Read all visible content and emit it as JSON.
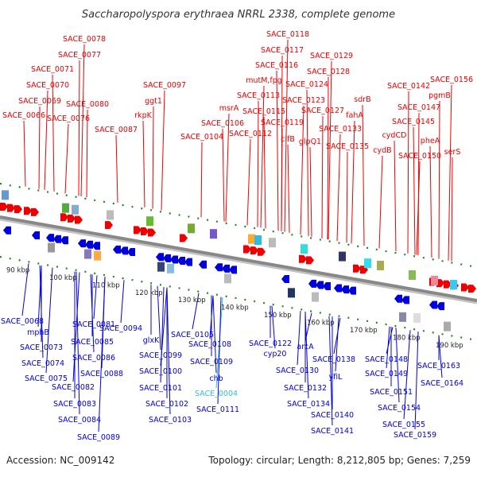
{
  "title": "Saccharopolyspora erythraea NRRL 2338, complete genome",
  "footer": {
    "accession": "Accession: NC_009142",
    "topology": "Topology: circular; Length: 8,212,805 bp; Genes: 7,259"
  },
  "colors": {
    "forward_strand": "#ee0000",
    "reverse_strand": "#0000dd",
    "highlight": "#33bbdd",
    "axis": "#888888",
    "tick_dots": "#228822"
  },
  "ticks": [
    "90 kbp",
    "100 kbp",
    "110 kbp",
    "120 kbp",
    "130 kbp",
    "140 kbp",
    "150 kbp",
    "160 kbp",
    "170 kbp",
    "180 kbp",
    "190 kbp"
  ],
  "top_labels": [
    "SACE_0078",
    "SACE_0077",
    "SACE_0071",
    "SACE_0070",
    "SACE_0069",
    "SACE_0066",
    "SACE_0076",
    "SACE_0080",
    "SACE_0087",
    "SACE_0097",
    "ggt1",
    "rkpK",
    "msrA",
    "SACE_0104",
    "SACE_0106",
    "SACE_0118",
    "SACE_0117",
    "SACE_0116",
    "mutM,fpg",
    "SACE_0113",
    "SACE_0115",
    "SACE_0112",
    "SACE_0119",
    "clfB",
    "SACE_0129",
    "SACE_0128",
    "SACE_0124",
    "SACE_0123",
    "SACE_0127",
    "glpQ1",
    "SACE_0133",
    "SACE_0135",
    "sdrB",
    "fahA",
    "SACE_0142",
    "cydCD",
    "cydB",
    "SACE_0147",
    "SACE_0145",
    "SACE_0156",
    "pgmB",
    "pheA",
    "SACE_0150",
    "serS"
  ],
  "bottom_labels": [
    "SACE_0068",
    "mphB",
    "SACE_0073",
    "SACE_0074",
    "SACE_0075",
    "SACE_0081",
    "SACE_0085",
    "SACE_0086",
    "SACE_0082",
    "SACE_0088",
    "SACE_0083",
    "SACE_0084",
    "SACE_0089",
    "SACE_0094",
    "glxK",
    "SACE_0099",
    "SACE_0100",
    "SACE_0101",
    "SACE_0102",
    "SACE_0103",
    "SACE_0105",
    "SACE_0108",
    "SACE_0109",
    "chb",
    "SACE_0004",
    "SACE_0111",
    "SACE_0122",
    "cyp20",
    "arcA",
    "SACE_0130",
    "SACE_0132",
    "SACE_0134",
    "SACE_0138",
    "yfiL",
    "SACE_0140",
    "SACE_0141",
    "SACE_0148",
    "SACE_0149",
    "SACE_0151",
    "SACE_0154",
    "SACE_0155",
    "SACE_0159",
    "SACE_0163",
    "SACE_0164"
  ]
}
